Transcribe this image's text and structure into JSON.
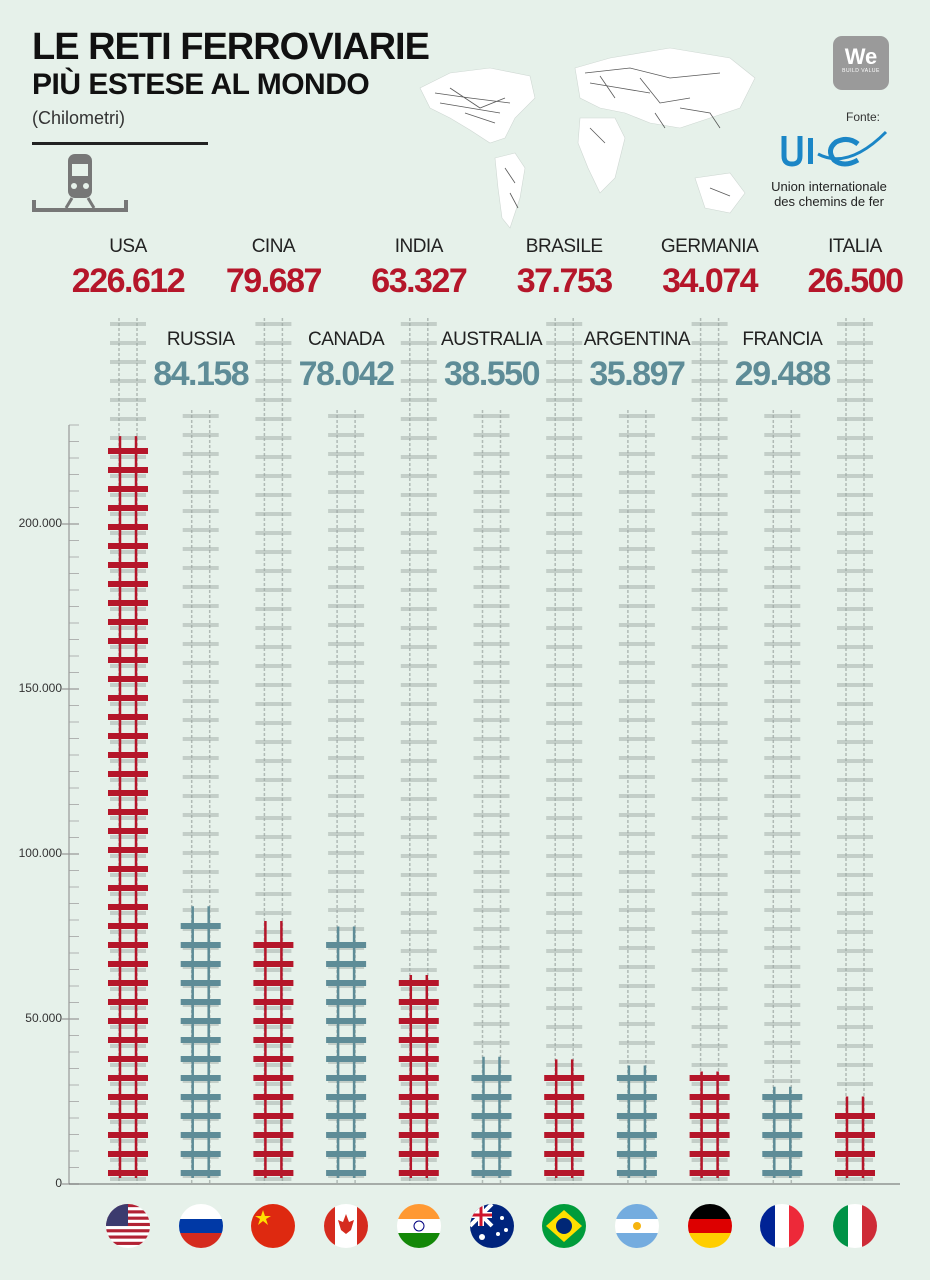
{
  "header": {
    "title_line1": "LE RETI FERROVIARIE",
    "title_line2": "PIÙ ESTESE AL MONDO",
    "subtitle": "(Chilometri)"
  },
  "source": {
    "label": "Fonte:",
    "org_name_line1": "Union internationale",
    "org_name_line2": "des chemins de fer",
    "logo_text": "UIC"
  },
  "brand": {
    "logo_text": "We",
    "logo_sub": "BUILD VALUE"
  },
  "icons": [
    "train-icon",
    "world-map-icon",
    "uic-logo-icon",
    "we-build-logo-icon"
  ],
  "colors": {
    "red": "#b5162a",
    "teal": "#5e8c97",
    "background": "#e6f1ea",
    "track": "#9aa3a0"
  },
  "chart_data": {
    "type": "bar",
    "categories": [
      "USA",
      "RUSSIA",
      "CINA",
      "CANADA",
      "INDIA",
      "AUSTRALIA",
      "BRASILE",
      "ARGENTINA",
      "GERMANIA",
      "FRANCIA",
      "ITALIA"
    ],
    "values": [
      226612,
      84158,
      79687,
      78042,
      63327,
      38550,
      37753,
      35897,
      34074,
      29488,
      26500
    ],
    "value_labels": [
      "226.612",
      "84.158",
      "79.687",
      "78.042",
      "63.327",
      "38.550",
      "37.753",
      "35.897",
      "34.074",
      "29.488",
      "26.500"
    ],
    "bar_colors": [
      "red",
      "teal",
      "red",
      "teal",
      "red",
      "teal",
      "red",
      "teal",
      "red",
      "teal",
      "red"
    ],
    "y_ticks": [
      0,
      50000,
      100000,
      150000,
      200000
    ],
    "y_tick_labels": [
      "0",
      "50.000",
      "100.000",
      "150.000",
      "200.000"
    ],
    "ylim": [
      0,
      230000
    ],
    "flags": [
      "usa",
      "russia",
      "china",
      "canada",
      "india",
      "australia",
      "brazil",
      "argentina",
      "germany",
      "france",
      "italy"
    ]
  }
}
